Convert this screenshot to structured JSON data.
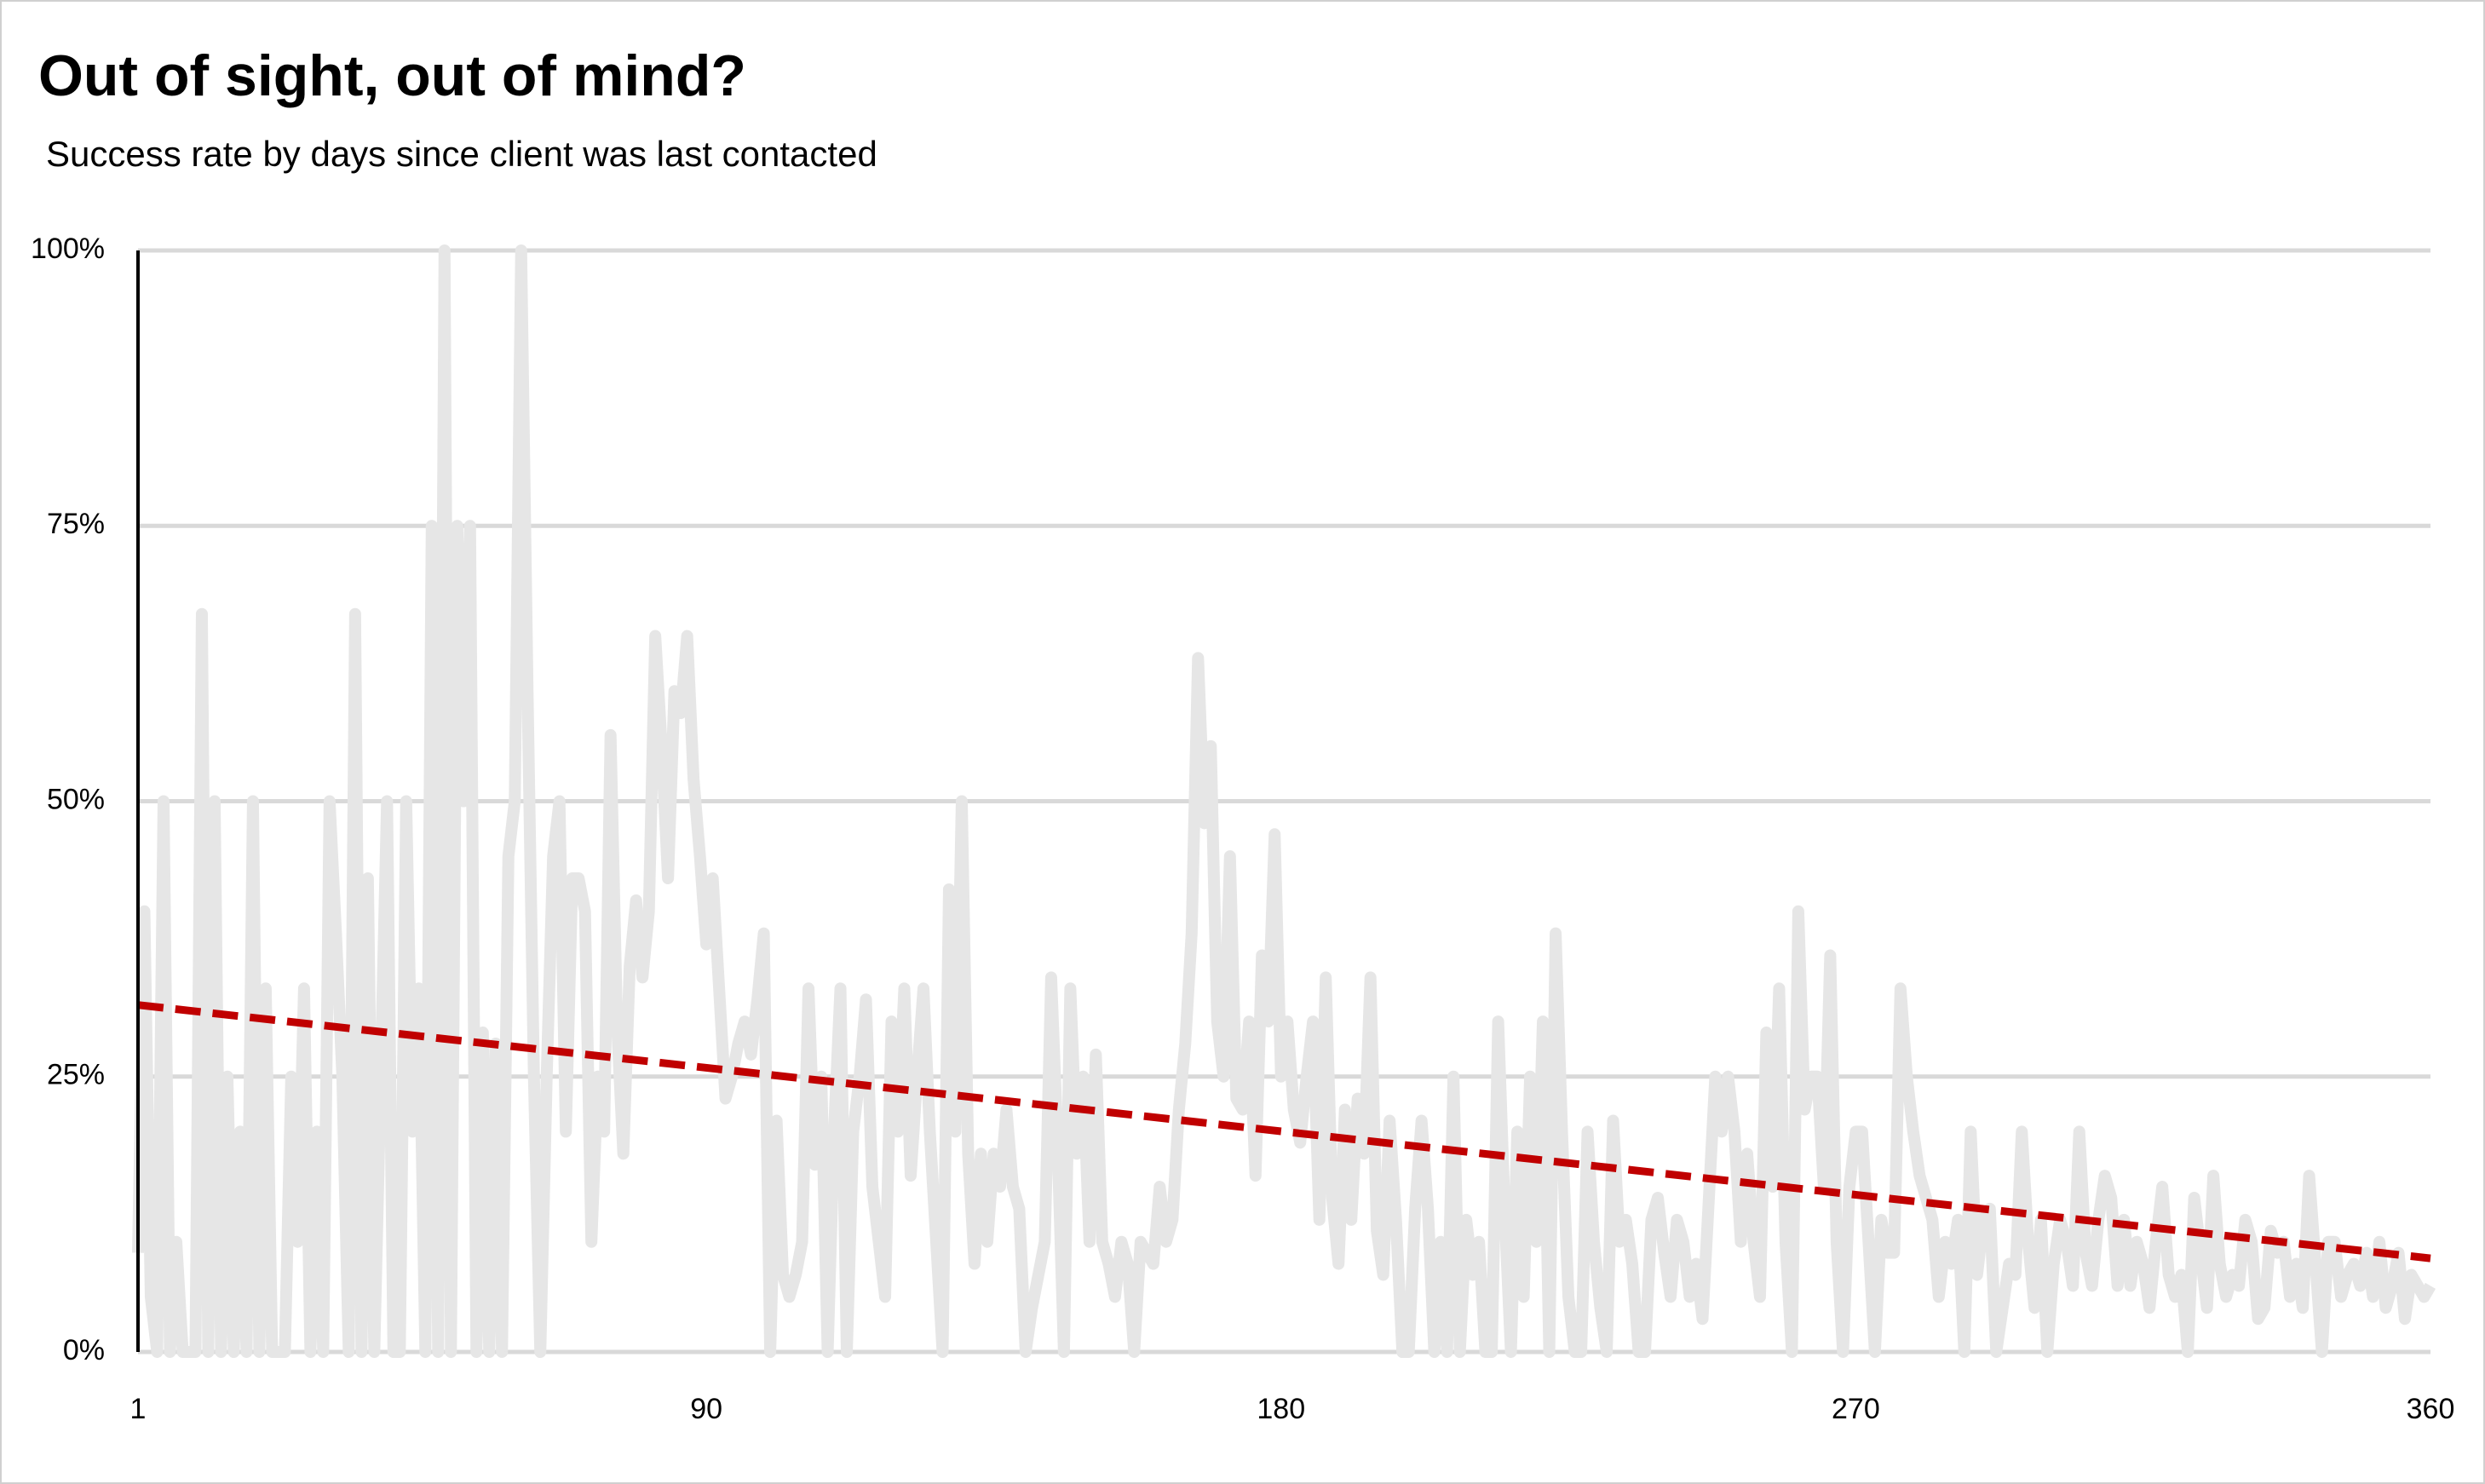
{
  "chart_data": {
    "type": "line",
    "title": "Out of sight, out of mind?",
    "subtitle": "Success rate by days since client was last contacted",
    "x": [
      1,
      2,
      3,
      4,
      5,
      6,
      7,
      8,
      9,
      10,
      11,
      12,
      13,
      14,
      15,
      16,
      17,
      18,
      19,
      20,
      21,
      22,
      23,
      24,
      25,
      26,
      27,
      28,
      29,
      30,
      31,
      32,
      33,
      34,
      35,
      36,
      37,
      38,
      39,
      40,
      41,
      42,
      43,
      44,
      45,
      46,
      47,
      48,
      49,
      50,
      51,
      52,
      53,
      54,
      55,
      56,
      57,
      58,
      59,
      60,
      61,
      62,
      63,
      64,
      65,
      66,
      67,
      68,
      69,
      70,
      71,
      72,
      73,
      74,
      75,
      76,
      77,
      78,
      79,
      80,
      81,
      82,
      83,
      84,
      85,
      86,
      87,
      88,
      89,
      90,
      91,
      92,
      93,
      94,
      95,
      96,
      97,
      98,
      99,
      100,
      101,
      102,
      103,
      104,
      105,
      106,
      107,
      108,
      109,
      110,
      111,
      112,
      113,
      114,
      115,
      116,
      117,
      118,
      119,
      120,
      121,
      122,
      123,
      124,
      125,
      126,
      127,
      128,
      129,
      130,
      131,
      132,
      133,
      134,
      135,
      136,
      137,
      138,
      139,
      140,
      141,
      142,
      143,
      144,
      145,
      146,
      147,
      148,
      149,
      150,
      151,
      152,
      153,
      154,
      155,
      156,
      157,
      158,
      159,
      160,
      161,
      162,
      163,
      164,
      165,
      166,
      167,
      168,
      169,
      170,
      171,
      172,
      173,
      174,
      175,
      176,
      177,
      178,
      179,
      180,
      181,
      182,
      183,
      184,
      185,
      186,
      187,
      188,
      189,
      190,
      191,
      192,
      193,
      194,
      195,
      196,
      197,
      198,
      199,
      200,
      201,
      202,
      203,
      204,
      205,
      206,
      207,
      208,
      209,
      210,
      211,
      212,
      213,
      214,
      215,
      216,
      217,
      218,
      219,
      220,
      221,
      222,
      223,
      224,
      225,
      226,
      227,
      228,
      229,
      230,
      231,
      232,
      233,
      234,
      235,
      236,
      237,
      238,
      239,
      240,
      241,
      242,
      243,
      244,
      245,
      246,
      247,
      248,
      249,
      250,
      251,
      252,
      253,
      254,
      255,
      256,
      257,
      258,
      259,
      260,
      261,
      262,
      263,
      264,
      265,
      266,
      267,
      268,
      269,
      270,
      271,
      272,
      273,
      274,
      275,
      276,
      277,
      278,
      279,
      280,
      281,
      282,
      283,
      284,
      285,
      286,
      287,
      288,
      289,
      290,
      291,
      292,
      293,
      294,
      295,
      296,
      297,
      298,
      299,
      300,
      301,
      302,
      303,
      304,
      305,
      306,
      307,
      308,
      309,
      310,
      311,
      312,
      313,
      314,
      315,
      316,
      317,
      318,
      319,
      320,
      321,
      322,
      323,
      324,
      325,
      326,
      327,
      328,
      329,
      330,
      331,
      332,
      333,
      334,
      335,
      336,
      337,
      338,
      339,
      340,
      341,
      342,
      343,
      344,
      345,
      346,
      347,
      348,
      349,
      350,
      351,
      352,
      353,
      354,
      355,
      356,
      357,
      358,
      359,
      360
    ],
    "series": [
      {
        "color": "#e6e6e6",
        "values": [
          9,
          40,
          5,
          0,
          50,
          0,
          10,
          0,
          0,
          0,
          67,
          0,
          50,
          0,
          25,
          0,
          20,
          0,
          50,
          0,
          33,
          0,
          0,
          0,
          25,
          10,
          33,
          0,
          20,
          0,
          50,
          38,
          25,
          0,
          67,
          0,
          43,
          0,
          25,
          50,
          0,
          0,
          50,
          20,
          33,
          0,
          75,
          0,
          100,
          0,
          75,
          50,
          75,
          0,
          29,
          0,
          28,
          0,
          45,
          50,
          100,
          60,
          25,
          0,
          25,
          45,
          50,
          20,
          43,
          43,
          40,
          10,
          25,
          20,
          56,
          30,
          18,
          35,
          41,
          34,
          40,
          65,
          55,
          43,
          60,
          58,
          65,
          52,
          45,
          37,
          43,
          33,
          23,
          25,
          28,
          30,
          27,
          32,
          38,
          0,
          21,
          7,
          5,
          7,
          10,
          33,
          17,
          25,
          0,
          20,
          33,
          0,
          20,
          25,
          32,
          15,
          10,
          5,
          30,
          20,
          33,
          16,
          25,
          33,
          20,
          10,
          0,
          42,
          20,
          50,
          18,
          8,
          18,
          10,
          18,
          15,
          22,
          15,
          13,
          0,
          4,
          7,
          10,
          34,
          19,
          0,
          33,
          18,
          25,
          10,
          27,
          10,
          8,
          5,
          10,
          8,
          0,
          10,
          9,
          8,
          15,
          10,
          12,
          22,
          28,
          38,
          63,
          48,
          55,
          30,
          25,
          45,
          23,
          22,
          30,
          16,
          36,
          30,
          47,
          25,
          30,
          22,
          19,
          25,
          30,
          12,
          34,
          14,
          8,
          22,
          12,
          23,
          18,
          34,
          11,
          7,
          21,
          12,
          0,
          0,
          13,
          21,
          13,
          0,
          10,
          0,
          25,
          0,
          12,
          7,
          10,
          0,
          0,
          30,
          13,
          0,
          20,
          5,
          25,
          10,
          30,
          0,
          38,
          20,
          5,
          0,
          0,
          20,
          10,
          4,
          0,
          21,
          10,
          12,
          8,
          0,
          0,
          12,
          14,
          9,
          5,
          12,
          10,
          5,
          8,
          3,
          14,
          25,
          20,
          25,
          20,
          10,
          18,
          10,
          5,
          29,
          15,
          33,
          10,
          0,
          40,
          22,
          25,
          25,
          15,
          36,
          10,
          0,
          15,
          20,
          20,
          10,
          0,
          12,
          9,
          9,
          33,
          25,
          20,
          16,
          14,
          12,
          5,
          10,
          8,
          12,
          0,
          20,
          7,
          12,
          13,
          0,
          4,
          8,
          7,
          20,
          10,
          4,
          12,
          0,
          8,
          12,
          10,
          6,
          20,
          9,
          6,
          12,
          16,
          14,
          6,
          12,
          6,
          10,
          8,
          4,
          10,
          15,
          7,
          5,
          7,
          0,
          14,
          9,
          4,
          16,
          8,
          5,
          7,
          6,
          12,
          10,
          3,
          4,
          11,
          9,
          10,
          5,
          8,
          4,
          16,
          8,
          0,
          10,
          10,
          5,
          7,
          8,
          6,
          9,
          5,
          10,
          4,
          6,
          9,
          3,
          7,
          6,
          5,
          6
        ]
      }
    ],
    "trendline": {
      "x": [
        1,
        360
      ],
      "values": [
        31.5,
        8.5
      ],
      "color": "#c00000"
    },
    "xlim": [
      1,
      360
    ],
    "xticks": [
      1,
      90,
      180,
      270,
      360
    ],
    "ylim": [
      0,
      100
    ],
    "yticks": [
      {
        "value": 0,
        "label": "0%"
      },
      {
        "value": 25,
        "label": "25%"
      },
      {
        "value": 50,
        "label": "50%"
      },
      {
        "value": 75,
        "label": "75%"
      },
      {
        "value": 100,
        "label": "100%"
      }
    ],
    "grid": true
  }
}
